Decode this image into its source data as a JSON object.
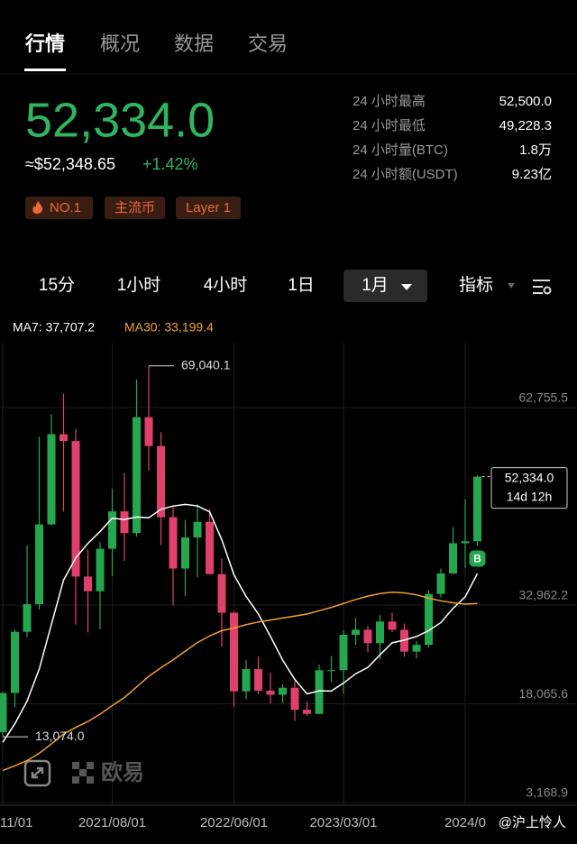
{
  "tabs": [
    {
      "label": "行情",
      "active": true
    },
    {
      "label": "概况",
      "active": false
    },
    {
      "label": "数据",
      "active": false
    },
    {
      "label": "交易",
      "active": false
    }
  ],
  "price": {
    "last": "52,334.0",
    "usd": "≈$52,348.65",
    "change": "+1.42%"
  },
  "tags": [
    "NO.1",
    "主流币",
    "Layer 1"
  ],
  "stats": [
    {
      "label": "24 小时最高",
      "value": "52,500.0"
    },
    {
      "label": "24 小时最低",
      "value": "49,228.3"
    },
    {
      "label": "24 小时量(BTC)",
      "value": "1.8万"
    },
    {
      "label": "24 小时额(USDT)",
      "value": "9.23亿"
    }
  ],
  "intervals": [
    {
      "label": "15分",
      "selected": false
    },
    {
      "label": "1小时",
      "selected": false
    },
    {
      "label": "4小时",
      "selected": false
    },
    {
      "label": "1日",
      "selected": false
    },
    {
      "label": "1月",
      "selected": true
    }
  ],
  "indicator_button": "指标",
  "watermark": {
    "brand": "欧易",
    "author": "@沪上怜人"
  },
  "chart_data": {
    "type": "candlestick",
    "up_color": "#25a750",
    "down_color": "#e0416b",
    "grid": true,
    "x": [
      "2020/11/01",
      "2020/12/01",
      "2021/01/01",
      "2021/02/01",
      "2021/03/01",
      "2021/04/01",
      "2021/05/01",
      "2021/06/01",
      "2021/07/01",
      "2021/08/01",
      "2021/09/01",
      "2021/10/01",
      "2021/11/01",
      "2021/12/01",
      "2022/01/01",
      "2022/02/01",
      "2022/03/01",
      "2022/04/01",
      "2022/05/01",
      "2022/06/01",
      "2022/07/01",
      "2022/08/01",
      "2022/09/01",
      "2022/10/01",
      "2022/11/01",
      "2022/12/01",
      "2023/01/01",
      "2023/02/01",
      "2023/03/01",
      "2023/04/01",
      "2023/05/01",
      "2023/06/01",
      "2023/07/01",
      "2023/08/01",
      "2023/09/01",
      "2023/10/01",
      "2023/11/01",
      "2023/12/01",
      "2024/01/01",
      "2024/02/01"
    ],
    "open": [
      13781,
      19695,
      28923,
      33092,
      45135,
      58739,
      57697,
      37253,
      35045,
      41461,
      47100,
      43824,
      61300,
      56950,
      46216,
      38466,
      43160,
      45510,
      37630,
      31801,
      19942,
      23293,
      20050,
      19422,
      20490,
      17164,
      16542,
      23125,
      23141,
      28465,
      29233,
      27210,
      30472,
      29232,
      25940,
      26962,
      34639,
      37723,
      42284,
      42580
    ],
    "high": [
      19863,
      29300,
      41950,
      58352,
      61788,
      64854,
      59500,
      41330,
      42448,
      50500,
      52920,
      67000,
      69040.1,
      59053,
      47990,
      45821,
      48189,
      47444,
      39980,
      31986,
      24668,
      25211,
      22799,
      20988,
      21480,
      18387,
      23960,
      25250,
      29190,
      31000,
      29820,
      31431,
      31804,
      30186,
      27483,
      35198,
      38450,
      44700,
      48970,
      52500
    ],
    "low": [
      13074,
      17572,
      28130,
      32296,
      44950,
      47044,
      30000,
      28805,
      29278,
      37332,
      39600,
      43283,
      53256,
      42000,
      32917,
      34322,
      37155,
      37578,
      26700,
      17567,
      18782,
      19520,
      18125,
      18190,
      15476,
      16256,
      16499,
      21351,
      19549,
      26942,
      25811,
      24800,
      28861,
      25166,
      24900,
      26538,
      34097,
      37615,
      38555,
      41880
    ],
    "close": [
      19695,
      28923,
      33092,
      45135,
      58739,
      57697,
      37253,
      35045,
      41461,
      47100,
      43824,
      61300,
      56950,
      46216,
      38466,
      43160,
      45510,
      37630,
      31801,
      19942,
      23293,
      20050,
      19422,
      20490,
      17164,
      16542,
      23125,
      23141,
      28465,
      29233,
      27210,
      30472,
      29232,
      25940,
      26962,
      34639,
      37723,
      42284,
      42580,
      52334.0
    ],
    "series": [
      {
        "name": "MA7: 37,707.2",
        "color": "#ffffff",
        "values": [
          12262,
          15044,
          18466,
          23297,
          30024,
          36726,
          40076,
          42269,
          44060,
          46062,
          45874,
          46240,
          46133,
          47414,
          47902,
          48145,
          47918,
          47033,
          42819,
          37532,
          34257,
          31627,
          28235,
          24661,
          21737,
          19558,
          20012,
          19991,
          21193,
          22594,
          23554,
          25455,
          27268,
          27670,
          28216,
          29098,
          30311,
          32465,
          34194,
          37707.2
        ]
      },
      {
        "name": "MA30: 33,199.4",
        "color": "#f0a030",
        "values": [
          8000,
          8700,
          9500,
          10600,
          12000,
          13500,
          14500,
          15400,
          16500,
          17800,
          19000,
          20600,
          22200,
          23500,
          24700,
          26000,
          27300,
          28300,
          29100,
          29500,
          30000,
          30400,
          30700,
          31000,
          31300,
          31600,
          32100,
          32600,
          33200,
          33800,
          34300,
          34700,
          34900,
          34800,
          34500,
          34000,
          33600,
          33300,
          33100,
          33199.4
        ]
      }
    ],
    "ylim": [
      2760,
      72550
    ],
    "yticks": [
      {
        "value": 3168.9,
        "label": "3,168.9"
      },
      {
        "value": 18065.6,
        "label": "18,065.6"
      },
      {
        "value": 32962.2,
        "label": "32,962.2"
      },
      {
        "value": 62755.5,
        "label": "62,755.5"
      }
    ],
    "xticks": [
      {
        "value": "2020/11/01",
        "label": "11/01"
      },
      "2021/08/01",
      "2022/06/01",
      "2023/03/01",
      {
        "value": "2024/01/01",
        "label": "2024/0"
      }
    ],
    "annotations": [
      {
        "text": "69,040.1",
        "value": 69040.1,
        "x": "2021/11/01"
      },
      {
        "text": "13,074.0",
        "value": 13074,
        "x": "2020/11/01"
      }
    ],
    "last_price": {
      "value": 52334.0,
      "label": "52,334.0",
      "countdown": "14d 12h"
    },
    "trade_marker": {
      "label": "B",
      "x": "2024/02/01"
    }
  }
}
